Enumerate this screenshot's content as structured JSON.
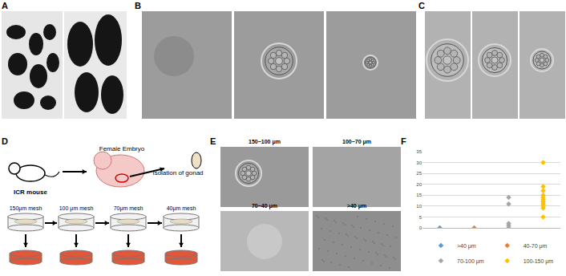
{
  "panels": [
    {
      "label": "A"
    },
    {
      "label": "B"
    },
    {
      "label": "C"
    },
    {
      "label": "D",
      "texts": {
        "mouse": "ICR mouse",
        "embryo": "Female Embryo",
        "gonad": "Isolation of gonad",
        "meshes": [
          "150μm mesh",
          "100 μm mesh",
          "70μm mesh",
          "40μm mesh"
        ]
      }
    },
    {
      "label": "E",
      "images": [
        "150~100 μm",
        "100~70 μm",
        "70~40 μm",
        ">40 μm"
      ]
    },
    {
      "label": "F"
    }
  ],
  "chart_data": {
    "type": "scatter",
    "xlim": [
      0.5,
      4.5
    ],
    "ylim": [
      0,
      35
    ],
    "yticks": [
      0,
      5,
      10,
      15,
      20,
      25,
      30,
      35
    ],
    "grid": true,
    "tick_labels": "y",
    "legend": "bottom",
    "marker": "diamond",
    "series": [
      {
        "name": ">40 μm",
        "color": "#5b9bd5",
        "x": [
          1
        ],
        "values": [
          0
        ]
      },
      {
        "name": "40-70 μm",
        "color": "#ed7d31",
        "x": [
          2
        ],
        "values": [
          0
        ]
      },
      {
        "name": "70-100 μm",
        "color": "#a5a5a5",
        "x": [
          3,
          3,
          3,
          3,
          3
        ],
        "values": [
          14,
          11,
          2,
          1,
          0
        ]
      },
      {
        "name": "100-150 μm",
        "color": "#ffc000",
        "x": [
          4,
          4,
          4,
          4,
          4,
          4,
          4,
          4,
          4,
          4,
          4,
          4
        ],
        "values": [
          30,
          19,
          17,
          15,
          14,
          13,
          12,
          12,
          11,
          10,
          9,
          5
        ]
      }
    ]
  }
}
